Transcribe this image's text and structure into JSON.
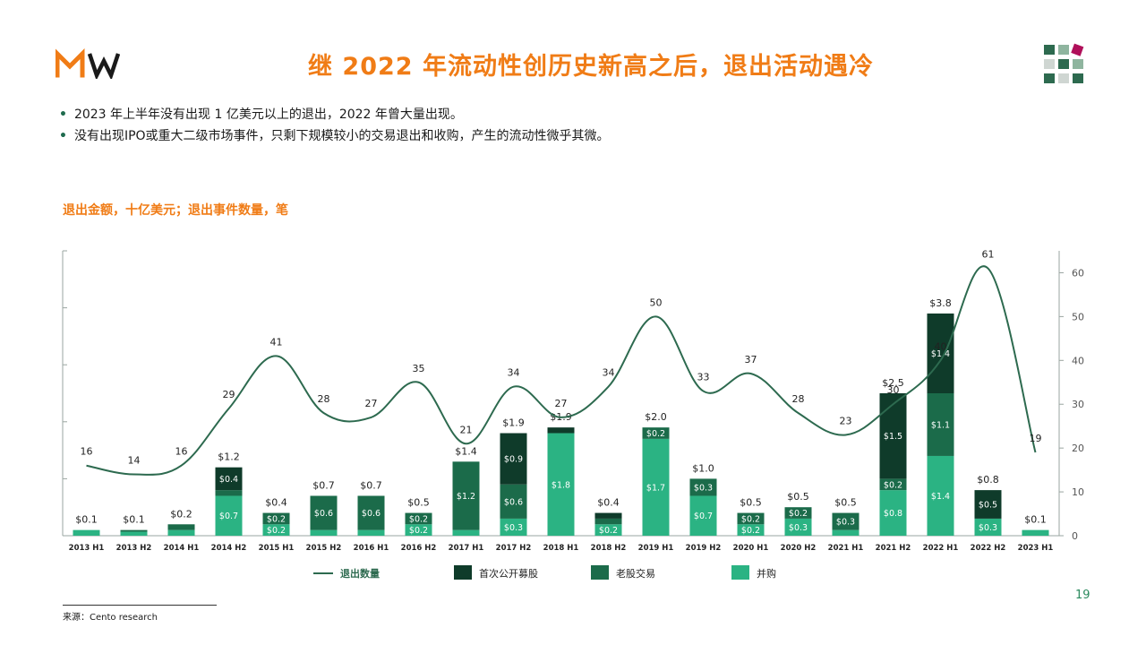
{
  "colors": {
    "accent": "#f07c16",
    "line": "#2d6a4f",
    "ipo": "#0f3b2a",
    "secondary": "#1b6b4a",
    "ma": "#2bb383",
    "axis": "#9aa5a0"
  },
  "header": {
    "logo_icon": "mw-logo-icon",
    "title": "继 2022 年流动性创历史新高之后，退出活动遇冷",
    "brand_icon": "grid-mark-icon"
  },
  "bullets": [
    "2023 年上半年没有出现 1 亿美元以上的退出，2022 年曾大量出现。",
    "没有出现IPO或重大二级市场事件，只剩下规模较小的交易退出和收购，产生的流动性微乎其微。"
  ],
  "chart_data": {
    "type": "bar",
    "title": "退出金额，十亿美元；退出事件数量，笔",
    "categories": [
      "2013 H1",
      "2013 H2",
      "2014 H1",
      "2014 H2",
      "2015 H1",
      "2015 H2",
      "2016 H1",
      "2016 H2",
      "2017 H1",
      "2017 H2",
      "2018 H1",
      "2018 H2",
      "2019 H1",
      "2019 H2",
      "2020 H1",
      "2020 H2",
      "2021 H1",
      "2021 H2",
      "2022 H1",
      "2022 H2",
      "2023 H1"
    ],
    "totals": [
      "$0.1",
      "$0.1",
      "$0.2",
      "$1.2",
      "$0.4",
      "$0.7",
      "$0.7",
      "$0.5",
      "$1.4",
      "$1.9",
      "$1.9",
      "$0.4",
      "$2.0",
      "$1.0",
      "$0.5",
      "$0.5",
      "$0.5",
      "$2.5",
      "$3.8",
      "$0.8",
      "$0.1"
    ],
    "series": [
      {
        "name": "首次公开募股",
        "key": "ipo",
        "values": [
          0,
          0,
          0,
          0.4,
          0,
          0,
          0,
          0,
          0,
          0.9,
          0.1,
          0.1,
          0,
          0,
          0,
          0,
          0,
          1.5,
          1.4,
          0.5,
          0
        ],
        "labels": [
          "",
          "",
          "",
          "$0.4",
          "",
          "",
          "",
          "",
          "",
          "$0.9",
          "",
          "",
          "",
          "",
          "",
          "",
          "",
          "$1.5",
          "$1.4",
          "$0.5",
          ""
        ]
      },
      {
        "name": "老股交易",
        "key": "secondary",
        "values": [
          0,
          0.03,
          0.1,
          0.1,
          0.2,
          0.6,
          0.6,
          0.2,
          1.2,
          0.6,
          0,
          0.1,
          0.2,
          0.3,
          0.2,
          0.2,
          0.3,
          0.2,
          1.1,
          0,
          0
        ],
        "labels": [
          "",
          "",
          "",
          "",
          "$0.2",
          "$0.6",
          "$0.6",
          "$0.2",
          "$1.2",
          "$0.6",
          "",
          "",
          "$0.2",
          "$0.3",
          "$0.2",
          "$0.2",
          "$0.3",
          "$0.2",
          "$1.1",
          "",
          ""
        ]
      },
      {
        "name": "并购",
        "key": "ma",
        "values": [
          0.1,
          0.07,
          0.1,
          0.7,
          0.2,
          0.1,
          0.1,
          0.2,
          0.1,
          0.3,
          1.8,
          0.2,
          1.7,
          0.7,
          0.2,
          0.3,
          0.1,
          0.8,
          1.4,
          0.3,
          0.1
        ],
        "labels": [
          "",
          "",
          "",
          "$0.7",
          "$0.2",
          "",
          "",
          "$0.2",
          "",
          "$0.3",
          "$1.8",
          "$0.2",
          "$1.7",
          "$0.7",
          "$0.2",
          "$0.3",
          "",
          "$0.8",
          "$1.4",
          "$0.3",
          ""
        ]
      }
    ],
    "line": {
      "name": "退出数量",
      "values": [
        16,
        14,
        16,
        29,
        41,
        28,
        27,
        35,
        21,
        34,
        27,
        34,
        50,
        33,
        37,
        28,
        23,
        30,
        40,
        61,
        19
      ]
    },
    "y_left": {
      "range": [
        0,
        5
      ]
    },
    "y_right": {
      "range": [
        0,
        65
      ],
      "ticks": [
        0,
        10,
        20,
        30,
        40,
        50,
        60
      ]
    },
    "legend_position": "bottom"
  },
  "footer": {
    "page_number": "19",
    "source": "来源：Cento research"
  }
}
